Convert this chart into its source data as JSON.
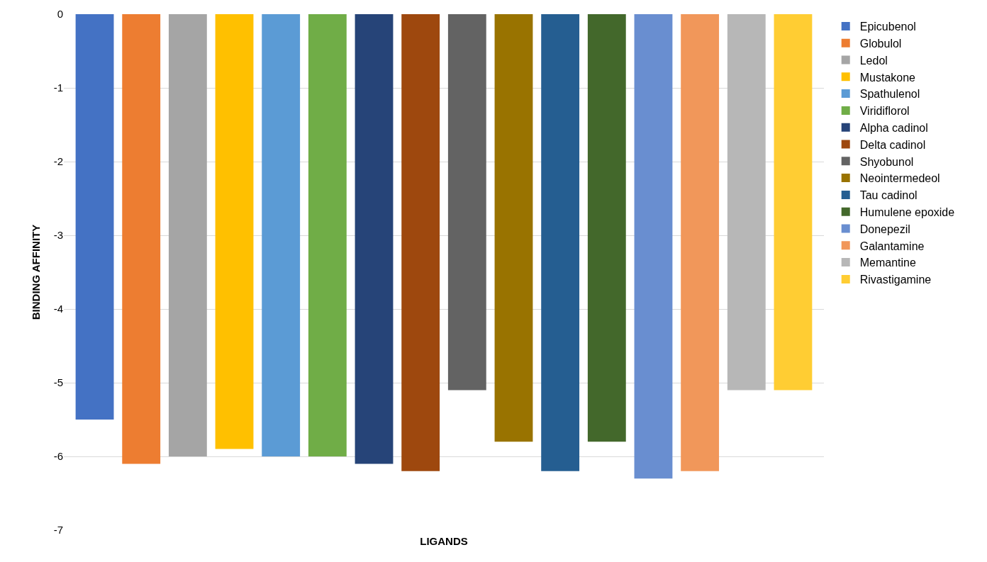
{
  "chart_data": {
    "type": "bar",
    "xlabel": "LIGANDS",
    "ylabel": "BINDING AFFINITY",
    "categories": [
      null
    ],
    "series": [
      {
        "name": "Epicubenol",
        "color": "#4472c4",
        "values": [
          -5.5
        ]
      },
      {
        "name": "Globulol",
        "color": "#ed7d31",
        "values": [
          -6.1
        ]
      },
      {
        "name": "Ledol",
        "color": "#a5a5a5",
        "values": [
          -6.0
        ]
      },
      {
        "name": "Mustakone",
        "color": "#ffc000",
        "values": [
          -5.9
        ]
      },
      {
        "name": "Spathulenol",
        "color": "#5b9bd5",
        "values": [
          -6.0
        ]
      },
      {
        "name": "Viridiflorol",
        "color": "#70ad47",
        "values": [
          -6.0
        ]
      },
      {
        "name": "Alpha cadinol",
        "color": "#264478",
        "values": [
          -6.1
        ]
      },
      {
        "name": "Delta cadinol",
        "color": "#9e480e",
        "values": [
          -6.2
        ]
      },
      {
        "name": "Shyobunol",
        "color": "#636363",
        "values": [
          -5.1
        ]
      },
      {
        "name": "Neointermedeol",
        "color": "#997300",
        "values": [
          -5.8
        ]
      },
      {
        "name": "Tau cadinol",
        "color": "#255e91",
        "values": [
          -6.2
        ]
      },
      {
        "name": "Humulene epoxide",
        "color": "#43682b",
        "values": [
          -5.8
        ]
      },
      {
        "name": "Donepezil",
        "color": "#698ed0",
        "values": [
          -6.3
        ]
      },
      {
        "name": "Galantamine",
        "color": "#f1975a",
        "values": [
          -6.2
        ]
      },
      {
        "name": "Memantine",
        "color": "#b7b7b7",
        "values": [
          -5.1
        ]
      },
      {
        "name": "Rivastigamine",
        "color": "#ffcd33",
        "values": [
          -5.1
        ]
      }
    ],
    "ylim": [
      -7,
      0
    ],
    "yticks": [
      0,
      -1,
      -2,
      -3,
      -4,
      -5,
      -6,
      -7
    ],
    "grid": "y",
    "legend": "right"
  }
}
